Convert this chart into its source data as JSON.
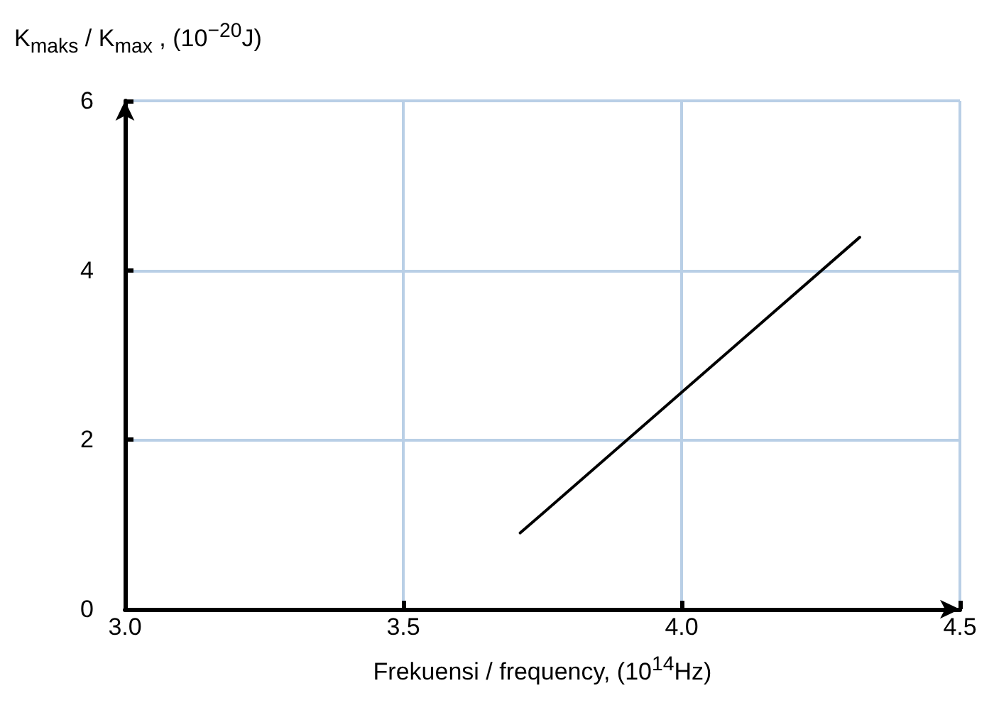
{
  "chart_data": {
    "type": "line",
    "xlabel": "Frekuensi / frequency, (10$^{14}$Hz)",
    "ylabel": "K$_{maks}$ / K$_{max}$ , (10$^{−20}$J)",
    "x": [
      3.71,
      4.32
    ],
    "series": [
      {
        "color": "#000000",
        "values": [
          0.9,
          4.39
        ]
      }
    ],
    "xlim": [
      3.0,
      4.5
    ],
    "xticks": [
      {
        "value": 3.0,
        "label": "3.0"
      },
      3.5,
      {
        "value": 4.0,
        "label": "4.0"
      },
      4.5
    ],
    "ylim": [
      0,
      6
    ],
    "yticks": [
      0,
      2,
      4,
      6
    ],
    "grid": true,
    "marker": "none",
    "line_style": "solid"
  }
}
